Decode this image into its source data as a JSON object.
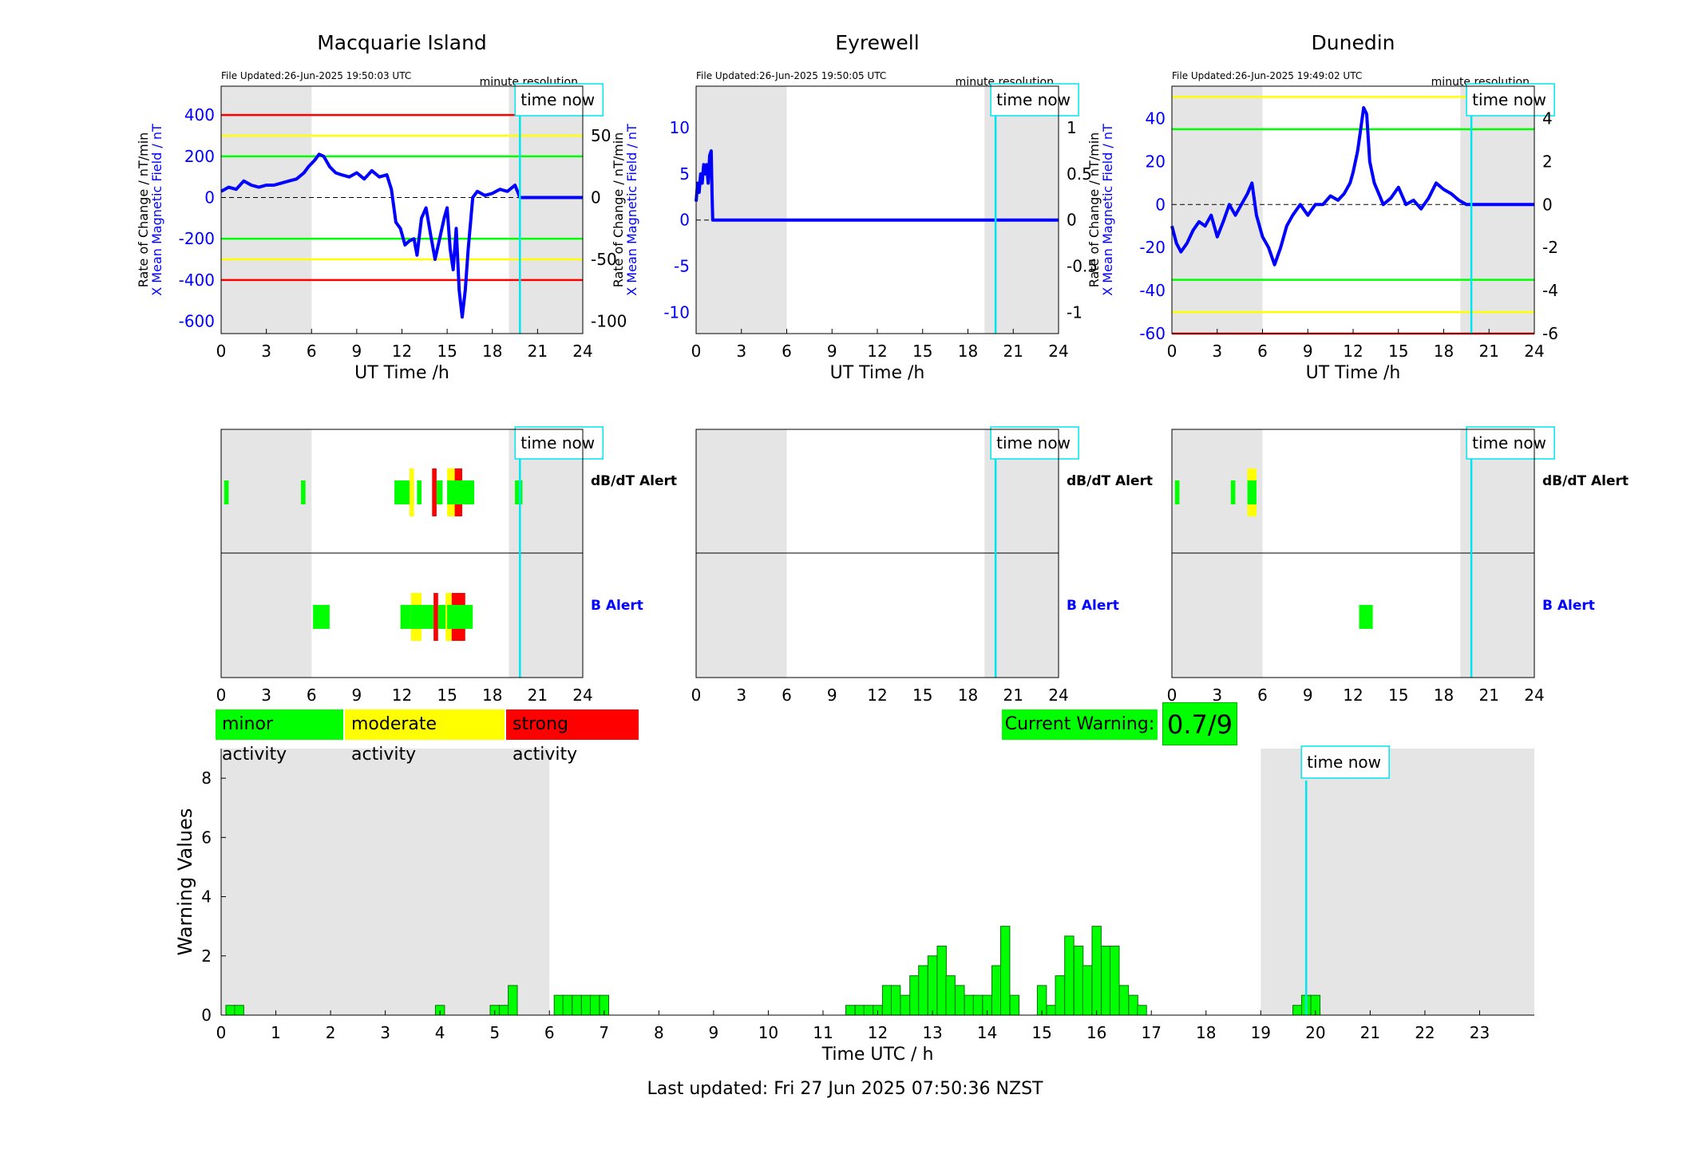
{
  "colors": {
    "x_field": "#0000ff",
    "roc": "#555555",
    "time_now": "#00e5ee",
    "night": "#e5e5e5",
    "minor": "#00ff00",
    "moderate": "#ffff00",
    "strong": "#ff0000",
    "bar_edge": "#007700"
  },
  "labels": {
    "time_now": "time now",
    "minute_resolution": "minute resolution",
    "ut_time_axis": "UT Time /h",
    "y_left": "X Mean Magnetic Field / nT",
    "y_right": "Rate of Change / nT/min",
    "dbdt_alert": "dB/dT Alert",
    "b_alert": "B Alert"
  },
  "legend": {
    "minor": "minor activity",
    "moderate": "moderate activity",
    "strong": "strong activity"
  },
  "current_warning": {
    "label": "Current Warning:",
    "value": "0.7/9"
  },
  "footer": "Last updated: Fri 27 Jun 2025 07:50:36 NZST",
  "chart_data": [
    {
      "type": "line",
      "station": "Macquarie Island",
      "file_updated": "File Updated:26-Jun-2025 19:50:03 UTC",
      "xlim": [
        0,
        24
      ],
      "xticks": [
        0,
        3,
        6,
        9,
        12,
        15,
        18,
        21,
        24
      ],
      "ylim_left": [
        -660,
        540
      ],
      "yticks_left": [
        -600,
        -400,
        -200,
        0,
        200,
        400
      ],
      "ylim_right": [
        -110,
        90
      ],
      "yticks_right": [
        -100,
        -50,
        0,
        50
      ],
      "thresholds": [
        {
          "level": 400,
          "color": "red"
        },
        {
          "level": 300,
          "color": "yellow"
        },
        {
          "level": 200,
          "color": "green"
        },
        {
          "level": -200,
          "color": "green"
        },
        {
          "level": -300,
          "color": "yellow"
        },
        {
          "level": -400,
          "color": "red"
        }
      ],
      "night_spans": [
        [
          0,
          6
        ],
        [
          19.1,
          24
        ]
      ],
      "time_now": 19.83,
      "x_field": {
        "x": [
          0,
          0.5,
          1,
          1.5,
          2,
          2.5,
          3,
          3.5,
          4,
          4.5,
          5,
          5.5,
          5.8,
          6.2,
          6.5,
          6.8,
          7.2,
          7.6,
          8,
          8.5,
          9,
          9.5,
          10,
          10.5,
          11,
          11.3,
          11.6,
          11.9,
          12.2,
          12.5,
          12.8,
          13,
          13.3,
          13.6,
          13.9,
          14.2,
          14.5,
          14.8,
          15,
          15.2,
          15.4,
          15.6,
          15.8,
          16,
          16.2,
          16.4,
          16.7,
          17,
          17.5,
          18,
          18.5,
          19,
          19.5,
          19.83,
          24
        ],
        "y": [
          30,
          50,
          40,
          80,
          60,
          50,
          60,
          60,
          70,
          80,
          90,
          120,
          150,
          180,
          210,
          200,
          150,
          120,
          110,
          100,
          120,
          90,
          130,
          100,
          110,
          40,
          -120,
          -150,
          -230,
          -210,
          -200,
          -280,
          -100,
          -50,
          -180,
          -300,
          -200,
          -100,
          -50,
          -250,
          -350,
          -150,
          -450,
          -580,
          -450,
          -250,
          0,
          30,
          10,
          20,
          40,
          30,
          60,
          0,
          0
        ]
      },
      "dbdt_alerts": [
        {
          "start": 0.2,
          "end": 0.5,
          "level": "minor"
        },
        {
          "start": 5.3,
          "end": 5.6,
          "level": "minor"
        },
        {
          "start": 11.5,
          "end": 12.8,
          "level": "minor"
        },
        {
          "start": 12.5,
          "end": 12.8,
          "level": "moderate"
        },
        {
          "start": 13.0,
          "end": 13.3,
          "level": "minor"
        },
        {
          "start": 14.0,
          "end": 14.3,
          "level": "strong"
        },
        {
          "start": 14.3,
          "end": 14.7,
          "level": "minor"
        },
        {
          "start": 15.0,
          "end": 15.5,
          "level": "moderate"
        },
        {
          "start": 15.5,
          "end": 16.0,
          "level": "strong"
        },
        {
          "start": 15.0,
          "end": 16.8,
          "level": "minor"
        },
        {
          "start": 19.5,
          "end": 20.0,
          "level": "minor"
        }
      ],
      "b_alerts": [
        {
          "start": 6.1,
          "end": 7.2,
          "level": "minor"
        },
        {
          "start": 11.9,
          "end": 12.6,
          "level": "minor"
        },
        {
          "start": 12.6,
          "end": 13.3,
          "level": "moderate"
        },
        {
          "start": 12.6,
          "end": 13.3,
          "level": "minor"
        },
        {
          "start": 13.3,
          "end": 14.1,
          "level": "minor"
        },
        {
          "start": 14.1,
          "end": 14.4,
          "level": "strong"
        },
        {
          "start": 14.4,
          "end": 14.9,
          "level": "minor"
        },
        {
          "start": 14.9,
          "end": 15.3,
          "level": "moderate"
        },
        {
          "start": 15.3,
          "end": 16.2,
          "level": "strong"
        },
        {
          "start": 15.0,
          "end": 16.7,
          "level": "minor"
        }
      ]
    },
    {
      "type": "line",
      "station": "Eyrewell",
      "file_updated": "File Updated:26-Jun-2025 19:50:05 UTC",
      "xlim": [
        0,
        24
      ],
      "xticks": [
        0,
        3,
        6,
        9,
        12,
        15,
        18,
        21,
        24
      ],
      "ylim_left": [
        -12.3,
        14.5
      ],
      "yticks_left": [
        -10,
        -5,
        0,
        5,
        10
      ],
      "ylim_right": [
        -1.23,
        1.45
      ],
      "yticks_right": [
        -1,
        -0.5,
        0,
        0.5,
        1
      ],
      "night_spans": [
        [
          0,
          6
        ],
        [
          19.1,
          24
        ]
      ],
      "time_now": 19.83,
      "x_field": {
        "x": [
          0,
          0.1,
          0.2,
          0.3,
          0.4,
          0.5,
          0.6,
          0.7,
          0.8,
          0.9,
          1.0,
          1.05,
          1.1,
          24
        ],
        "y": [
          2,
          4,
          3,
          5,
          4,
          6,
          5,
          6,
          4,
          7,
          7.5,
          3,
          0,
          0
        ]
      },
      "dbdt_alerts": [],
      "b_alerts": []
    },
    {
      "type": "line",
      "station": "Dunedin",
      "file_updated": "File Updated:26-Jun-2025 19:49:02 UTC",
      "xlim": [
        0,
        24
      ],
      "xticks": [
        0,
        3,
        6,
        9,
        12,
        15,
        18,
        21,
        24
      ],
      "ylim_left": [
        -60,
        55
      ],
      "yticks_left": [
        -60,
        -40,
        -20,
        0,
        20,
        40
      ],
      "ylim_right": [
        -6,
        5.5
      ],
      "yticks_right": [
        -6,
        -4,
        -2,
        0,
        2,
        4
      ],
      "thresholds": [
        {
          "level": 50,
          "color": "yellow"
        },
        {
          "level": 35,
          "color": "green"
        },
        {
          "level": -35,
          "color": "green"
        },
        {
          "level": -50,
          "color": "yellow"
        },
        {
          "level": -60,
          "color": "red"
        }
      ],
      "night_spans": [
        [
          0,
          6
        ],
        [
          19.1,
          24
        ]
      ],
      "time_now": 19.83,
      "x_field": {
        "x": [
          0,
          0.3,
          0.6,
          1.0,
          1.4,
          1.8,
          2.2,
          2.6,
          3.0,
          3.4,
          3.8,
          4.2,
          4.6,
          5.0,
          5.3,
          5.6,
          6.0,
          6.4,
          6.8,
          7.2,
          7.6,
          8.0,
          8.5,
          9.0,
          9.5,
          10.0,
          10.5,
          11.0,
          11.4,
          11.8,
          12.0,
          12.3,
          12.5,
          12.7,
          12.9,
          13.1,
          13.4,
          13.7,
          14.0,
          14.5,
          15.0,
          15.5,
          16.0,
          16.5,
          17.0,
          17.5,
          18.0,
          18.5,
          19.0,
          19.5,
          19.83,
          24
        ],
        "y": [
          -10,
          -18,
          -22,
          -18,
          -12,
          -8,
          -10,
          -5,
          -15,
          -8,
          0,
          -5,
          0,
          5,
          10,
          -5,
          -15,
          -20,
          -28,
          -20,
          -10,
          -5,
          0,
          -5,
          0,
          0,
          4,
          2,
          5,
          10,
          15,
          25,
          35,
          45,
          42,
          20,
          10,
          5,
          0,
          3,
          8,
          0,
          2,
          -2,
          3,
          10,
          7,
          5,
          2,
          0,
          0,
          0
        ]
      },
      "dbdt_alerts": [
        {
          "start": 0.2,
          "end": 0.5,
          "level": "minor"
        },
        {
          "start": 3.9,
          "end": 4.2,
          "level": "minor"
        },
        {
          "start": 5.0,
          "end": 5.6,
          "level": "moderate"
        },
        {
          "start": 5.0,
          "end": 5.6,
          "level": "minor"
        }
      ],
      "b_alerts": [
        {
          "start": 12.4,
          "end": 13.3,
          "level": "minor"
        }
      ]
    },
    {
      "type": "bar",
      "xlabel": "Time UTC / h",
      "ylabel": "Warning Values",
      "xlim": [
        0,
        24
      ],
      "xticks": [
        0,
        1,
        2,
        3,
        4,
        5,
        6,
        7,
        8,
        9,
        10,
        11,
        12,
        13,
        14,
        15,
        16,
        17,
        18,
        19,
        20,
        21,
        22,
        23
      ],
      "ylim": [
        0,
        9
      ],
      "yticks": [
        0,
        2,
        4,
        6,
        8
      ],
      "night_spans": [
        [
          0,
          6
        ],
        [
          19,
          24
        ]
      ],
      "time_now": 19.83,
      "bar_width": 0.1667,
      "bars": {
        "x": [
          0.17,
          0.33,
          4.0,
          5.0,
          5.17,
          5.33,
          6.17,
          6.33,
          6.5,
          6.67,
          6.83,
          7.0,
          11.5,
          11.67,
          11.83,
          12.0,
          12.17,
          12.33,
          12.5,
          12.67,
          12.83,
          13.0,
          13.17,
          13.33,
          13.5,
          13.67,
          13.83,
          14.0,
          14.17,
          14.33,
          14.5,
          15.0,
          15.17,
          15.33,
          15.5,
          15.67,
          15.83,
          16.0,
          16.17,
          16.33,
          16.5,
          16.67,
          16.83,
          19.67,
          19.83,
          20.0
        ],
        "y": [
          0.33,
          0.33,
          0.33,
          0.33,
          0.33,
          1.0,
          0.67,
          0.67,
          0.67,
          0.67,
          0.67,
          0.67,
          0.33,
          0.33,
          0.33,
          0.33,
          1.0,
          1.0,
          0.67,
          1.33,
          1.67,
          2.0,
          2.33,
          1.33,
          1.0,
          0.67,
          0.67,
          0.67,
          1.67,
          3.0,
          0.67,
          1.0,
          0.33,
          1.33,
          2.67,
          2.33,
          1.67,
          3.0,
          2.33,
          2.33,
          1.0,
          0.67,
          0.33,
          0.33,
          0.67,
          0.67
        ]
      }
    }
  ]
}
